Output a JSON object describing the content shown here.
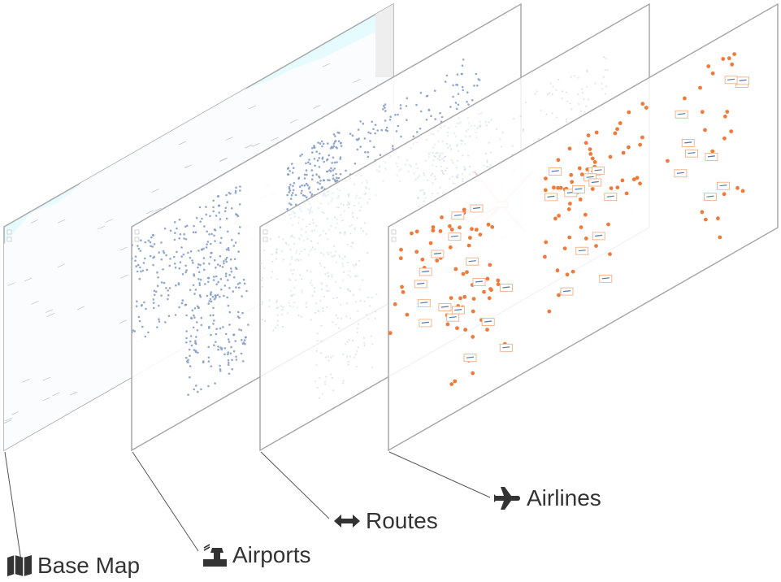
{
  "layers": [
    {
      "id": "base-map",
      "label": "Base Map",
      "icon": "map-icon"
    },
    {
      "id": "airports",
      "label": "Airports",
      "icon": "control-tower-icon"
    },
    {
      "id": "routes",
      "label": "Routes",
      "icon": "left-right-arrow-icon"
    },
    {
      "id": "airlines",
      "label": "Airlines",
      "icon": "airplane-icon"
    }
  ],
  "colors": {
    "layer_border": "#a9a9a9",
    "leader_line": "#555555",
    "label_text": "#333333",
    "ocean": "#e6fbfd",
    "land": "#fbfcfd",
    "airport_dot": "#7f99c5",
    "route_line": "#f4a3a3",
    "airline_dot": "#f07a3a",
    "airline_tag_border": "#f0a57a"
  }
}
